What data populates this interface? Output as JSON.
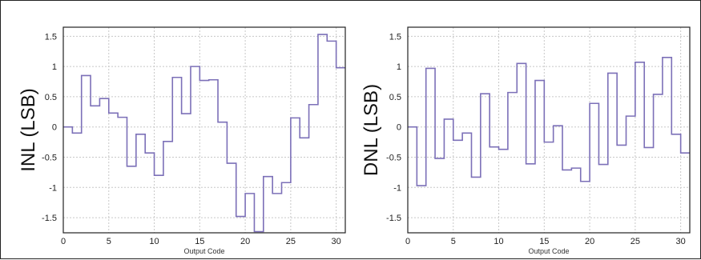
{
  "chart_data": [
    {
      "type": "line",
      "step": "post",
      "ylabel": "INL (LSB)",
      "xlabel": "Output Code",
      "xlim": [
        0,
        31
      ],
      "ylim": [
        -1.75,
        1.65
      ],
      "grid": true,
      "x_ticks": [
        "0",
        "5",
        "10",
        "15",
        "20",
        "25",
        "30"
      ],
      "y_ticks": [
        "1.5",
        "1",
        "0.5",
        "0",
        "-0.5",
        "-1",
        "-1.5"
      ],
      "line_color": "#7c70b8",
      "x": [
        0,
        1,
        2,
        3,
        4,
        5,
        6,
        7,
        8,
        9,
        10,
        11,
        12,
        13,
        14,
        15,
        16,
        17,
        18,
        19,
        20,
        21,
        22,
        23,
        24,
        25,
        26,
        27,
        28,
        29,
        30,
        31
      ],
      "values": [
        0.0,
        -0.1,
        0.85,
        0.35,
        0.47,
        0.23,
        0.16,
        -0.65,
        -0.12,
        -0.43,
        -0.8,
        -0.24,
        0.82,
        0.22,
        1.0,
        0.77,
        0.78,
        0.08,
        -0.6,
        -1.48,
        -1.1,
        -1.73,
        -0.82,
        -1.1,
        -0.92,
        0.15,
        -0.18,
        0.37,
        1.53,
        1.42,
        0.98,
        0.98
      ]
    },
    {
      "type": "line",
      "step": "post",
      "ylabel": "DNL (LSB)",
      "xlabel": "Output Code",
      "xlim": [
        0,
        31
      ],
      "ylim": [
        -1.75,
        1.65
      ],
      "grid": true,
      "x_ticks": [
        "0",
        "5",
        "10",
        "15",
        "20",
        "25",
        "30"
      ],
      "y_ticks": [
        "1.5",
        "1",
        "0.5",
        "0",
        "-0.5",
        "-1",
        "-1.5"
      ],
      "line_color": "#7c70b8",
      "x": [
        0,
        1,
        2,
        3,
        4,
        5,
        6,
        7,
        8,
        9,
        10,
        11,
        12,
        13,
        14,
        15,
        16,
        17,
        18,
        19,
        20,
        21,
        22,
        23,
        24,
        25,
        26,
        27,
        28,
        29,
        30,
        31
      ],
      "values": [
        0.0,
        -0.97,
        0.97,
        -0.52,
        0.13,
        -0.22,
        -0.1,
        -0.83,
        0.55,
        -0.33,
        -0.37,
        0.57,
        1.05,
        -0.61,
        0.77,
        -0.25,
        0.02,
        -0.71,
        -0.68,
        -0.9,
        0.39,
        -0.62,
        0.89,
        -0.3,
        0.18,
        1.07,
        -0.34,
        0.54,
        1.15,
        -0.12,
        -0.43,
        -0.43
      ]
    }
  ]
}
